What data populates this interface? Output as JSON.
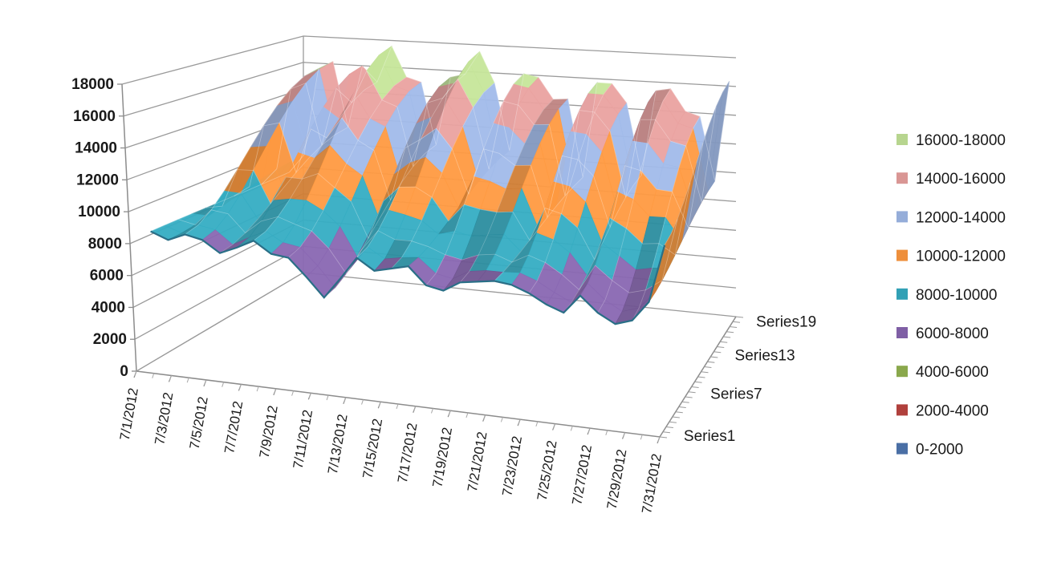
{
  "chart_data": {
    "type": "surface",
    "title": "",
    "ylim": [
      0,
      18000
    ],
    "y_ticks": [
      "0",
      "2000",
      "4000",
      "6000",
      "8000",
      "10000",
      "12000",
      "14000",
      "16000",
      "18000"
    ],
    "x_categories": [
      "7/1/2012",
      "7/3/2012",
      "7/5/2012",
      "7/7/2012",
      "7/9/2012",
      "7/11/2012",
      "7/13/2012",
      "7/15/2012",
      "7/17/2012",
      "7/19/2012",
      "7/21/2012",
      "7/23/2012",
      "7/25/2012",
      "7/27/2012",
      "7/29/2012",
      "7/31/2012"
    ],
    "depth_labels": [
      "Series1",
      "Series7",
      "Series13",
      "Series19"
    ],
    "legend_position": "right",
    "legend": [
      {
        "label": "16000-18000",
        "color": "#b7d58f"
      },
      {
        "label": "14000-16000",
        "color": "#d99694"
      },
      {
        "label": "12000-14000",
        "color": "#95add9"
      },
      {
        "label": "10000-12000",
        "color": "#ee8f3c"
      },
      {
        "label": "8000-10000",
        "color": "#31a0b5"
      },
      {
        "label": "6000-8000",
        "color": "#7f5fa5"
      },
      {
        "label": "4000-6000",
        "color": "#8aa84c"
      },
      {
        "label": "2000-4000",
        "color": "#b0403c"
      },
      {
        "label": "0-2000",
        "color": "#4a6fa5"
      }
    ],
    "front_series": [
      8200,
      7800,
      8300,
      8100,
      7400,
      7900,
      8500,
      7800,
      7700,
      6600,
      5400,
      6800,
      8300,
      7600,
      7900,
      8200,
      7100,
      6900,
      7600,
      7800,
      8000,
      7900,
      7500,
      6900,
      6500,
      7800,
      6800,
      6200,
      6600,
      8000,
      12000
    ],
    "back_series": [
      8100,
      9500,
      16000,
      16600,
      11800,
      16400,
      15300,
      18000,
      15800,
      15500,
      11000,
      16000,
      16300,
      18000,
      15800,
      11000,
      16600,
      16400,
      14900,
      15000,
      9500,
      16300,
      16300,
      15000,
      10000,
      16000,
      16200,
      14700,
      14400,
      10000,
      17000
    ]
  }
}
